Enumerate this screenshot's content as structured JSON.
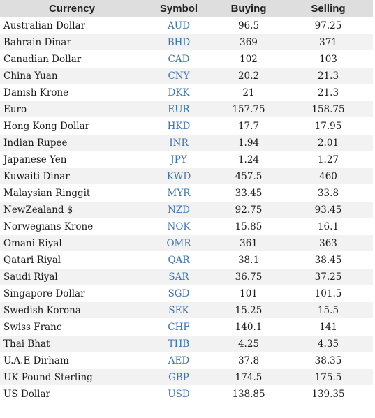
{
  "header": {
    "currency": "Currency",
    "symbol": "Symbol",
    "buying": "Buying",
    "selling": "Selling"
  },
  "colors": {
    "header_bg": "#dedede",
    "row_alt_bg": "#f2f2f2",
    "symbol_text": "#3b73b9",
    "body_text": "#1a1a1a"
  },
  "rows": [
    {
      "name": "Australian Dollar",
      "symbol": "AUD",
      "buying": "96.5",
      "selling": "97.25"
    },
    {
      "name": "Bahrain Dinar",
      "symbol": "BHD",
      "buying": "369",
      "selling": "371"
    },
    {
      "name": "Canadian Dollar",
      "symbol": "CAD",
      "buying": "102",
      "selling": "103"
    },
    {
      "name": "China Yuan",
      "symbol": "CNY",
      "buying": "20.2",
      "selling": "21.3"
    },
    {
      "name": "Danish Krone",
      "symbol": "DKK",
      "buying": "21",
      "selling": "21.3"
    },
    {
      "name": "Euro",
      "symbol": "EUR",
      "buying": "157.75",
      "selling": "158.75"
    },
    {
      "name": "Hong Kong Dollar",
      "symbol": "HKD",
      "buying": "17.7",
      "selling": "17.95"
    },
    {
      "name": "Indian Rupee",
      "symbol": "INR",
      "buying": "1.94",
      "selling": "2.01"
    },
    {
      "name": "Japanese Yen",
      "symbol": "JPY",
      "buying": "1.24",
      "selling": "1.27"
    },
    {
      "name": "Kuwaiti Dinar",
      "symbol": "KWD",
      "buying": "457.5",
      "selling": "460"
    },
    {
      "name": "Malaysian Ringgit",
      "symbol": "MYR",
      "buying": "33.45",
      "selling": "33.8"
    },
    {
      "name": "NewZealand $",
      "symbol": "NZD",
      "buying": "92.75",
      "selling": "93.45"
    },
    {
      "name": "Norwegians Krone",
      "symbol": "NOK",
      "buying": "15.85",
      "selling": "16.1"
    },
    {
      "name": "Omani Riyal",
      "symbol": "OMR",
      "buying": "361",
      "selling": "363"
    },
    {
      "name": "Qatari Riyal",
      "symbol": "QAR",
      "buying": "38.1",
      "selling": "38.45"
    },
    {
      "name": "Saudi Riyal",
      "symbol": "SAR",
      "buying": "36.75",
      "selling": "37.25"
    },
    {
      "name": "Singapore Dollar",
      "symbol": "SGD",
      "buying": "101",
      "selling": "101.5"
    },
    {
      "name": "Swedish Korona",
      "symbol": "SEK",
      "buying": "15.25",
      "selling": "15.5"
    },
    {
      "name": "Swiss Franc",
      "symbol": "CHF",
      "buying": "140.1",
      "selling": "141"
    },
    {
      "name": "Thai Bhat",
      "symbol": "THB",
      "buying": "4.25",
      "selling": "4.35"
    },
    {
      "name": "U.A.E Dirham",
      "symbol": "AED",
      "buying": "37.8",
      "selling": "38.35"
    },
    {
      "name": "UK Pound Sterling",
      "symbol": "GBP",
      "buying": "174.5",
      "selling": "175.5"
    },
    {
      "name": "US Dollar",
      "symbol": "USD",
      "buying": "138.85",
      "selling": "139.35"
    }
  ]
}
